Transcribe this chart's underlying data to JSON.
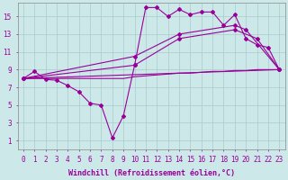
{
  "bg_color": "#cce8e8",
  "line_color": "#990099",
  "grid_color": "#aacccc",
  "xlabel": "Windchill (Refroidissement éolien,°C)",
  "xlabel_fontsize": 6,
  "tick_fontsize": 5.5,
  "xlim": [
    -0.5,
    23.5
  ],
  "ylim": [
    0,
    16.5
  ],
  "xticks": [
    0,
    1,
    2,
    3,
    4,
    5,
    6,
    7,
    8,
    9,
    10,
    11,
    12,
    13,
    14,
    15,
    16,
    17,
    18,
    19,
    20,
    21,
    22,
    23
  ],
  "yticks": [
    1,
    3,
    5,
    7,
    9,
    11,
    13,
    15
  ],
  "curve1_x": [
    0,
    1,
    2,
    3,
    4,
    5,
    6,
    7,
    8,
    9,
    10,
    11,
    12,
    13,
    14,
    15,
    16,
    17,
    18,
    19,
    20,
    21,
    22,
    23
  ],
  "curve1_y": [
    8.0,
    8.8,
    7.9,
    7.8,
    7.2,
    6.5,
    5.2,
    5.0,
    1.3,
    3.8,
    9.5,
    16.0,
    16.0,
    15.0,
    15.8,
    15.2,
    15.5,
    15.5,
    14.0,
    15.2,
    12.5,
    11.8,
    11.5,
    9.0
  ],
  "curve2_x": [
    0,
    1,
    2,
    3,
    4,
    5,
    6,
    7,
    8,
    9,
    10,
    11,
    12,
    13,
    14,
    15,
    16,
    17,
    18,
    19,
    20,
    21,
    22,
    23
  ],
  "curve2_y": [
    8.0,
    8.0,
    8.0,
    8.0,
    8.0,
    8.0,
    8.0,
    8.0,
    8.0,
    8.0,
    8.2,
    8.3,
    8.4,
    8.5,
    8.6,
    8.6,
    8.7,
    8.8,
    8.8,
    8.9,
    8.9,
    9.0,
    9.0,
    9.0
  ],
  "curve3_x": [
    0,
    23
  ],
  "curve3_y": [
    8.0,
    9.0
  ],
  "curve4_x": [
    0,
    10,
    14,
    19,
    21,
    23
  ],
  "curve4_y": [
    8.0,
    9.5,
    12.5,
    13.5,
    12.5,
    9.0
  ],
  "curve5_x": [
    0,
    10,
    14,
    19,
    20,
    23
  ],
  "curve5_y": [
    8.0,
    10.5,
    13.0,
    14.0,
    13.5,
    9.0
  ]
}
